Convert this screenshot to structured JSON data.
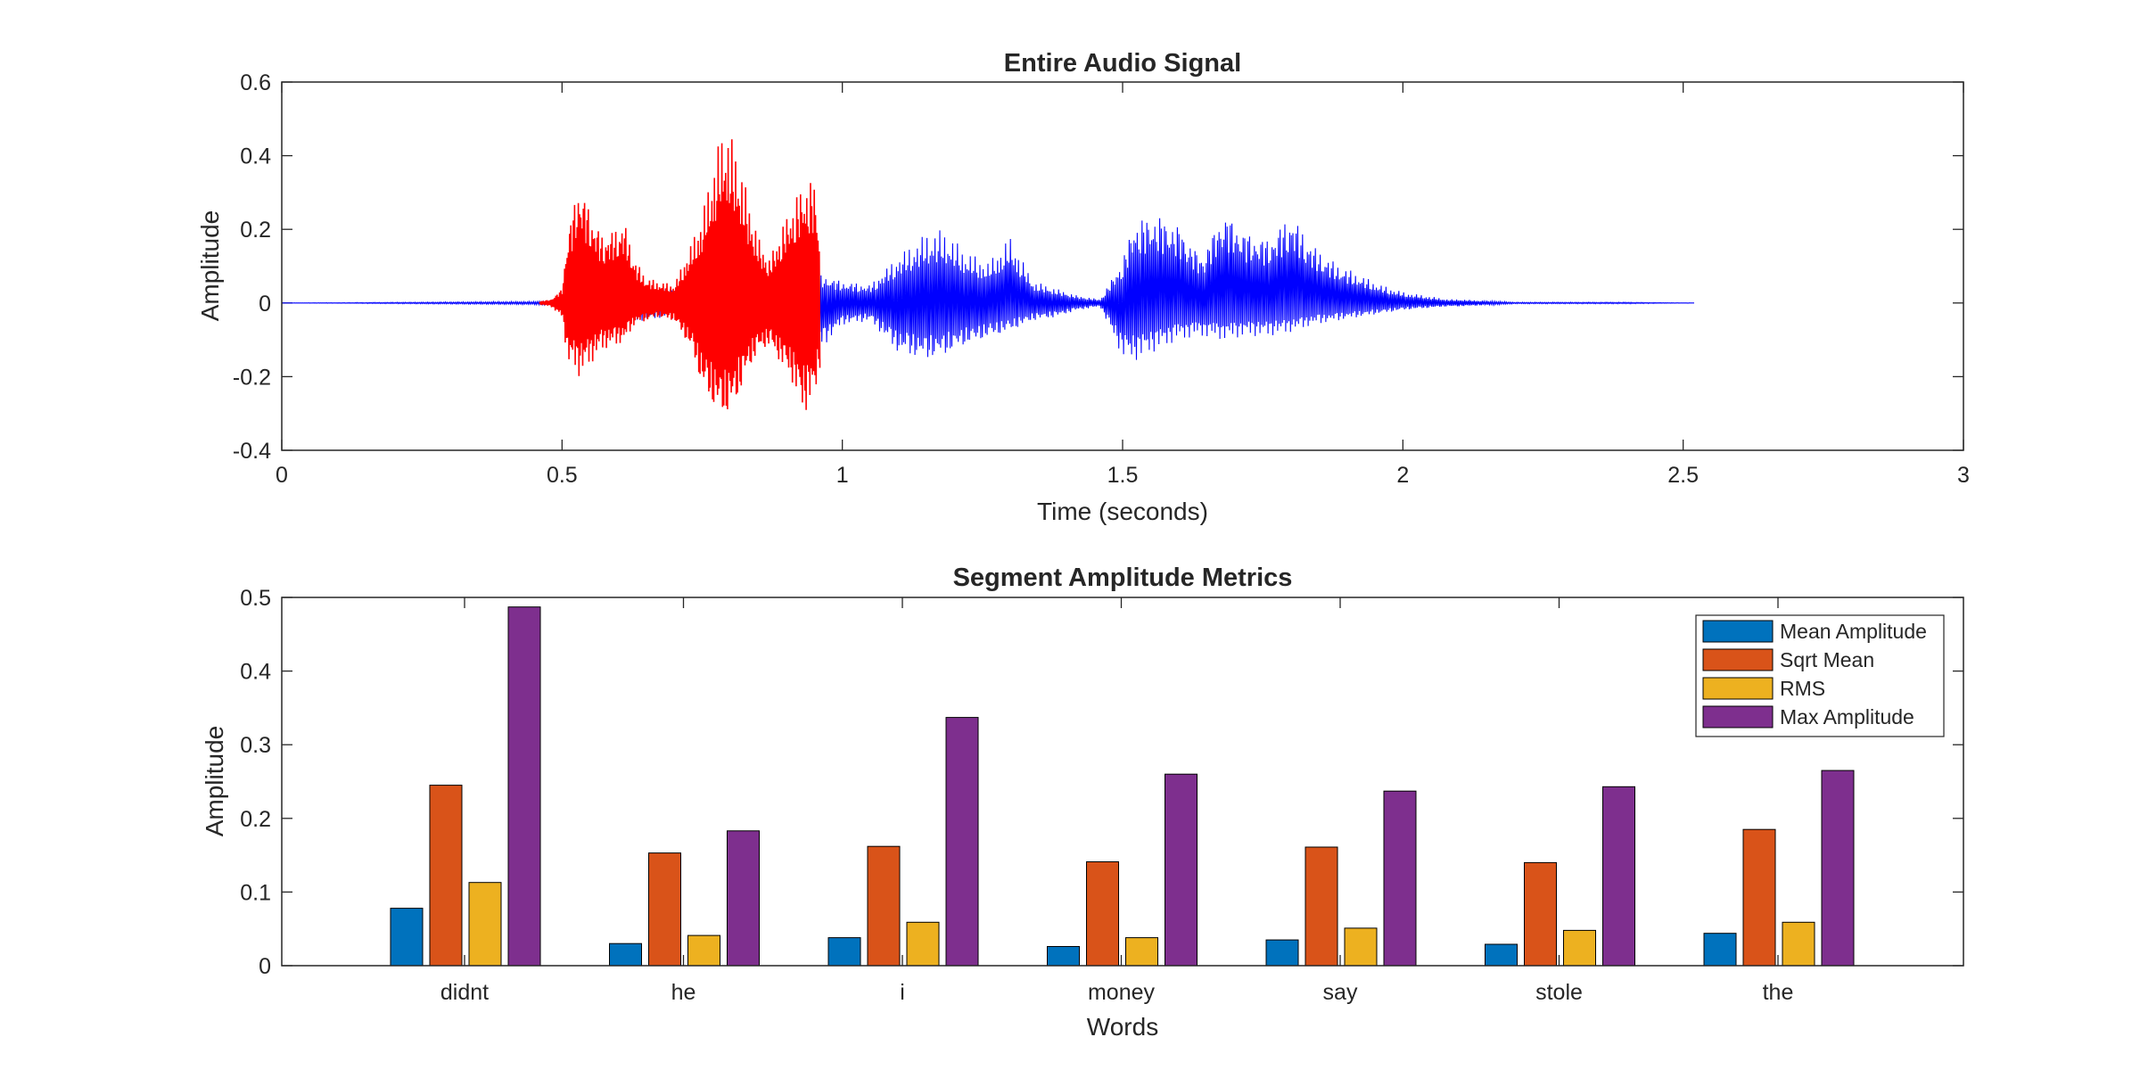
{
  "chart_data": [
    {
      "type": "line",
      "title": "Entire Audio Signal",
      "xlabel": "Time (seconds)",
      "ylabel": "Amplitude",
      "xlim": [
        0,
        3
      ],
      "ylim": [
        -0.4,
        0.6
      ],
      "xticks": [
        "0",
        "0.5",
        "1",
        "1.5",
        "2",
        "2.5",
        "3"
      ],
      "yticks": [
        "-0.4",
        "-0.2",
        "0",
        "0.2",
        "0.4",
        "0.6"
      ],
      "duration": 2.52,
      "grid": false,
      "series": [
        {
          "color": "#0000ff",
          "x": [
            0,
            0.45,
            0.5,
            0.52,
            0.56,
            0.6,
            0.64,
            0.68,
            0.72,
            0.76,
            0.8,
            0.84,
            0.88,
            0.92,
            0.96,
            1.0,
            1.05,
            1.1,
            1.15,
            1.18,
            1.22,
            1.26,
            1.3,
            1.34,
            1.38,
            1.42,
            1.46,
            1.5,
            1.52,
            1.56,
            1.6,
            1.64,
            1.68,
            1.72,
            1.76,
            1.8,
            1.84,
            1.88,
            1.92,
            1.96,
            2.0,
            2.04,
            2.08,
            2.1,
            2.2,
            2.3,
            2.4,
            2.52
          ],
          "y_max": [
            0,
            0.004,
            0.01,
            0.02,
            0.03,
            0.05,
            0.05,
            0.04,
            0.05,
            0.06,
            0.06,
            0.05,
            0.06,
            0.07,
            0.08,
            0.06,
            0.05,
            0.13,
            0.19,
            0.2,
            0.14,
            0.11,
            0.18,
            0.06,
            0.04,
            0.02,
            0.01,
            0.12,
            0.23,
            0.25,
            0.22,
            0.13,
            0.26,
            0.2,
            0.18,
            0.25,
            0.16,
            0.11,
            0.08,
            0.05,
            0.03,
            0.02,
            0.01,
            0.01,
            0.002,
            0.002,
            0.002,
            0
          ],
          "y_min": [
            0,
            -0.004,
            -0.01,
            -0.02,
            -0.03,
            -0.05,
            -0.05,
            -0.04,
            -0.05,
            -0.06,
            -0.06,
            -0.05,
            -0.06,
            -0.07,
            -0.13,
            -0.06,
            -0.05,
            -0.14,
            -0.16,
            -0.15,
            -0.12,
            -0.1,
            -0.08,
            -0.05,
            -0.04,
            -0.02,
            -0.01,
            -0.15,
            -0.16,
            -0.13,
            -0.1,
            -0.09,
            -0.1,
            -0.09,
            -0.09,
            -0.08,
            -0.06,
            -0.05,
            -0.04,
            -0.03,
            -0.02,
            -0.015,
            -0.01,
            -0.01,
            -0.002,
            -0.002,
            -0.002,
            0
          ]
        },
        {
          "color": "#ff0000",
          "x": [
            0.46,
            0.48,
            0.5,
            0.51,
            0.53,
            0.55,
            0.57,
            0.59,
            0.61,
            0.63,
            0.65,
            0.67,
            0.7,
            0.73,
            0.75,
            0.77,
            0.79,
            0.81,
            0.83,
            0.85,
            0.87,
            0.89,
            0.91,
            0.93,
            0.95,
            0.96
          ],
          "y_max": [
            0.005,
            0.01,
            0.04,
            0.2,
            0.34,
            0.26,
            0.19,
            0.2,
            0.23,
            0.12,
            0.07,
            0.06,
            0.05,
            0.16,
            0.24,
            0.38,
            0.49,
            0.42,
            0.3,
            0.18,
            0.12,
            0.2,
            0.27,
            0.33,
            0.34,
            0.2
          ],
          "y_min": [
            -0.005,
            -0.01,
            -0.04,
            -0.16,
            -0.2,
            -0.17,
            -0.13,
            -0.12,
            -0.11,
            -0.06,
            -0.05,
            -0.04,
            -0.05,
            -0.13,
            -0.24,
            -0.3,
            -0.33,
            -0.29,
            -0.2,
            -0.14,
            -0.12,
            -0.17,
            -0.22,
            -0.31,
            -0.27,
            -0.18
          ]
        }
      ]
    },
    {
      "type": "bar",
      "title": "Segment Amplitude Metrics",
      "xlabel": "Words",
      "ylabel": "Amplitude",
      "ylim": [
        0,
        0.5
      ],
      "yticks": [
        "0",
        "0.1",
        "0.2",
        "0.3",
        "0.4",
        "0.5"
      ],
      "legend_position": "top-right",
      "grid": false,
      "categories": [
        "didnt",
        "he",
        "i",
        "money",
        "say",
        "stole",
        "the"
      ],
      "series": [
        {
          "name": "Mean Amplitude",
          "color": "#0072bd",
          "values": [
            0.078,
            0.03,
            0.038,
            0.026,
            0.035,
            0.029,
            0.044
          ]
        },
        {
          "name": "Sqrt Mean",
          "color": "#d95319",
          "values": [
            0.245,
            0.153,
            0.162,
            0.141,
            0.161,
            0.14,
            0.185
          ]
        },
        {
          "name": "RMS",
          "color": "#edb120",
          "values": [
            0.113,
            0.041,
            0.059,
            0.038,
            0.051,
            0.048,
            0.059
          ]
        },
        {
          "name": "Max Amplitude",
          "color": "#7e2f8e",
          "values": [
            0.487,
            0.183,
            0.337,
            0.26,
            0.237,
            0.243,
            0.265
          ]
        }
      ]
    }
  ]
}
